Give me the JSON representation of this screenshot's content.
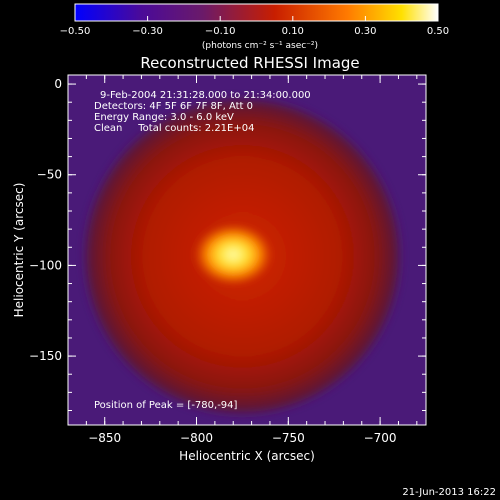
{
  "chart_data": {
    "type": "heatmap",
    "title": "Reconstructed RHESSI Image",
    "xlabel": "Heliocentric X (arcsec)",
    "ylabel": "Heliocentric Y (arcsec)",
    "xlim": [
      -870,
      -675
    ],
    "ylim": [
      -188,
      5
    ],
    "x_ticks": [
      -850,
      -800,
      -750,
      -700
    ],
    "y_ticks": [
      0,
      -50,
      -100,
      -150
    ],
    "colorbar": {
      "min": -0.5,
      "max": 0.5,
      "ticks": [
        -0.5,
        -0.3,
        -0.1,
        0.1,
        0.3,
        0.5
      ],
      "tick_labels": [
        "-0.50",
        "-0.30",
        "-0.10",
        "0.10",
        "0.30",
        "0.50"
      ],
      "unit_label": "(photons cm⁻² s⁻¹ asec⁻²)"
    },
    "annotations": [
      "9-Feb-2004 21:31:28.000 to 21:34:00.000",
      "Detectors: 4F 5F 6F 7F 8F, Att 0",
      "Energy Range: 3.0 - 6.0 keV",
      "Clean     Total counts: 2.21E+04",
      "Position of Peak = [-780,-94]"
    ],
    "peak": {
      "x": -780,
      "y": -94
    },
    "source_center": {
      "x": -775,
      "y": -95
    },
    "colors": {
      "background": "#000000",
      "low_values": "#5a1a8c",
      "mid_values": "#c81e00",
      "peak_values": "#ffff80"
    }
  },
  "footer": {
    "date": "21-Jun-2013 16:22"
  }
}
